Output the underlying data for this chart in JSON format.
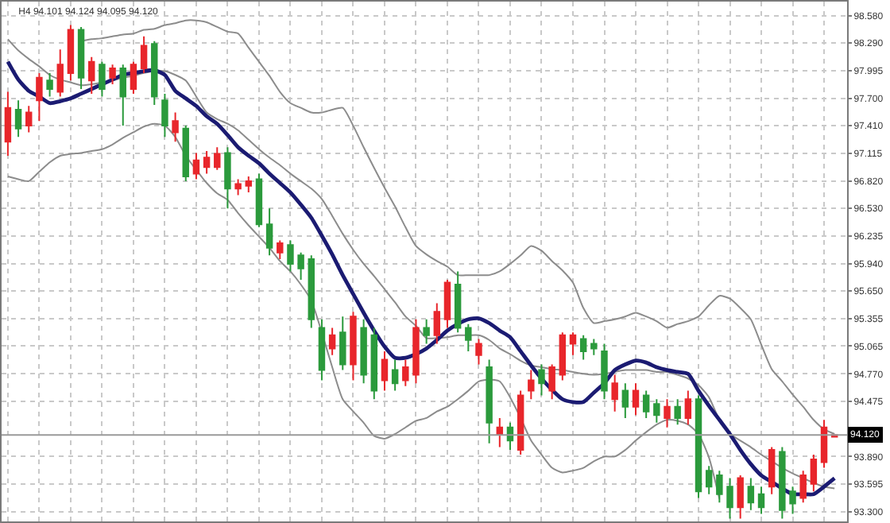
{
  "chart_data": {
    "type": "candlestick",
    "title": "H4 94.101 94.124 94.095 94.120",
    "categories": [
      null,
      null,
      null,
      null,
      null,
      null,
      null,
      null,
      null,
      null,
      null,
      null,
      null,
      null,
      null,
      null,
      null,
      null,
      null,
      null,
      null,
      null,
      null,
      null,
      null,
      null,
      null,
      null,
      null,
      null,
      null,
      null,
      null,
      null,
      null,
      null,
      null,
      null,
      null,
      null,
      null,
      null,
      null,
      null,
      null,
      null,
      null,
      null,
      null,
      null,
      null,
      null,
      null,
      null,
      null,
      null,
      null,
      null,
      null,
      null,
      null,
      null,
      null,
      null,
      null,
      null,
      null,
      null,
      null,
      null,
      null,
      null,
      null,
      null,
      null,
      null,
      null,
      null,
      null,
      null
    ],
    "ohlc": [
      [
        97.24,
        97.77,
        97.09,
        97.6
      ],
      [
        97.58,
        97.68,
        97.29,
        97.38
      ],
      [
        97.41,
        97.62,
        97.34,
        97.55
      ],
      [
        97.68,
        97.97,
        97.46,
        97.92
      ],
      [
        97.89,
        97.97,
        97.72,
        97.8
      ],
      [
        97.77,
        98.22,
        97.72,
        98.06
      ],
      [
        97.97,
        98.48,
        97.89,
        98.43
      ],
      [
        98.43,
        98.46,
        97.8,
        97.92
      ],
      [
        97.89,
        98.14,
        97.75,
        98.09
      ],
      [
        98.06,
        98.09,
        97.72,
        97.8
      ],
      [
        97.92,
        98.06,
        97.85,
        98.02
      ],
      [
        98.02,
        98.06,
        97.41,
        97.72
      ],
      [
        97.8,
        98.09,
        97.75,
        98.06
      ],
      [
        98.02,
        98.36,
        97.97,
        98.26
      ],
      [
        98.28,
        98.31,
        97.63,
        97.72
      ],
      [
        97.68,
        97.75,
        97.29,
        97.41
      ],
      [
        97.34,
        97.55,
        97.24,
        97.46
      ],
      [
        97.38,
        97.41,
        96.82,
        96.87
      ],
      [
        96.9,
        97.12,
        96.84,
        97.04
      ],
      [
        96.97,
        97.14,
        96.9,
        97.07
      ],
      [
        96.97,
        97.18,
        96.94,
        97.11
      ],
      [
        97.12,
        97.18,
        96.53,
        96.74
      ],
      [
        96.74,
        96.84,
        96.67,
        96.79
      ],
      [
        96.77,
        96.87,
        96.7,
        96.82
      ],
      [
        96.84,
        96.9,
        96.33,
        96.36
      ],
      [
        96.36,
        96.53,
        96.03,
        96.11
      ],
      [
        96.06,
        96.19,
        95.99,
        96.16
      ],
      [
        96.14,
        96.19,
        95.86,
        95.94
      ],
      [
        96.03,
        96.06,
        95.77,
        95.89
      ],
      [
        95.99,
        96.03,
        95.26,
        95.35
      ],
      [
        95.26,
        95.35,
        94.7,
        94.81
      ],
      [
        95.04,
        95.26,
        94.97,
        95.18
      ],
      [
        95.21,
        95.38,
        94.81,
        94.87
      ],
      [
        94.87,
        95.43,
        94.7,
        95.38
      ],
      [
        95.26,
        95.35,
        94.67,
        94.76
      ],
      [
        95.18,
        95.26,
        94.5,
        94.59
      ],
      [
        94.7,
        95.01,
        94.59,
        94.92
      ],
      [
        94.81,
        94.92,
        94.59,
        94.67
      ],
      [
        94.7,
        94.92,
        94.64,
        94.84
      ],
      [
        94.76,
        95.35,
        94.67,
        95.26
      ],
      [
        95.26,
        95.35,
        95.09,
        95.18
      ],
      [
        95.18,
        95.52,
        95.09,
        95.43
      ],
      [
        95.35,
        95.77,
        95.26,
        95.74
      ],
      [
        95.72,
        95.86,
        95.21,
        95.26
      ],
      [
        95.26,
        95.3,
        95.01,
        95.13
      ],
      [
        94.97,
        95.14,
        94.87,
        95.09
      ],
      [
        94.84,
        94.92,
        94.03,
        94.25
      ],
      [
        94.13,
        94.3,
        93.99,
        94.2
      ],
      [
        94.2,
        94.25,
        93.96,
        94.06
      ],
      [
        93.96,
        94.59,
        93.91,
        94.54
      ],
      [
        94.59,
        94.81,
        94.5,
        94.7
      ],
      [
        94.81,
        94.87,
        94.54,
        94.67
      ],
      [
        94.59,
        94.87,
        94.5,
        94.84
      ],
      [
        94.76,
        95.21,
        94.7,
        95.18
      ],
      [
        95.09,
        95.21,
        94.97,
        95.18
      ],
      [
        95.14,
        95.18,
        94.92,
        95.01
      ],
      [
        95.09,
        95.14,
        94.97,
        95.04
      ],
      [
        95.01,
        95.09,
        94.5,
        94.59
      ],
      [
        94.5,
        94.76,
        94.37,
        94.67
      ],
      [
        94.59,
        94.67,
        94.3,
        94.42
      ],
      [
        94.42,
        94.67,
        94.33,
        94.59
      ],
      [
        94.54,
        94.59,
        94.3,
        94.37
      ],
      [
        94.45,
        94.5,
        94.25,
        94.33
      ],
      [
        94.3,
        94.5,
        94.2,
        94.42
      ],
      [
        94.42,
        94.5,
        94.23,
        94.3
      ],
      [
        94.3,
        94.59,
        94.23,
        94.5
      ],
      [
        94.5,
        94.54,
        93.45,
        93.52
      ],
      [
        93.74,
        93.79,
        93.49,
        93.57
      ],
      [
        93.69,
        93.74,
        93.4,
        93.49
      ],
      [
        93.57,
        93.66,
        93.23,
        93.35
      ],
      [
        93.35,
        93.69,
        93.23,
        93.66
      ],
      [
        93.57,
        93.66,
        93.32,
        93.4
      ],
      [
        93.49,
        93.57,
        93.28,
        93.35
      ],
      [
        93.57,
        93.99,
        93.49,
        93.96
      ],
      [
        93.94,
        93.99,
        93.23,
        93.32
      ],
      [
        93.52,
        93.57,
        93.28,
        93.39
      ],
      [
        93.45,
        93.74,
        93.4,
        93.69
      ],
      [
        93.6,
        93.91,
        93.52,
        93.86
      ],
      [
        93.83,
        94.28,
        93.77,
        94.2
      ],
      [
        94.101,
        94.124,
        94.095,
        94.12
      ]
    ],
    "colors": [
      "#e8262b",
      "#2b9a3c",
      "#e8262b",
      "#e8262b",
      "#2b9a3c",
      "#e8262b",
      "#e8262b",
      "#2b9a3c",
      "#e8262b",
      "#2b9a3c",
      "#e8262b",
      "#2b9a3c",
      "#e8262b",
      "#e8262b",
      "#2b9a3c",
      "#2b9a3c",
      "#e8262b",
      "#2b9a3c",
      "#e8262b",
      "#e8262b",
      "#e8262b",
      "#2b9a3c",
      "#e8262b",
      "#e8262b",
      "#2b9a3c",
      "#2b9a3c",
      "#e8262b",
      "#2b9a3c",
      "#2b9a3c",
      "#2b9a3c",
      "#2b9a3c",
      "#e8262b",
      "#2b9a3c",
      "#e8262b",
      "#2b9a3c",
      "#2b9a3c",
      "#e8262b",
      "#2b9a3c",
      "#e8262b",
      "#e8262b",
      "#2b9a3c",
      "#e8262b",
      "#e8262b",
      "#2b9a3c",
      "#2b9a3c",
      "#e8262b",
      "#2b9a3c",
      "#e8262b",
      "#2b9a3c",
      "#e8262b",
      "#e8262b",
      "#2b9a3c",
      "#e8262b",
      "#e8262b",
      "#e8262b",
      "#2b9a3c",
      "#2b9a3c",
      "#2b9a3c",
      "#e8262b",
      "#2b9a3c",
      "#e8262b",
      "#2b9a3c",
      "#2b9a3c",
      "#e8262b",
      "#2b9a3c",
      "#e8262b",
      "#2b9a3c",
      "#2b9a3c",
      "#2b9a3c",
      "#2b9a3c",
      "#e8262b",
      "#2b9a3c",
      "#2b9a3c",
      "#e8262b",
      "#2b9a3c",
      "#2b9a3c",
      "#e8262b",
      "#e8262b",
      "#e8262b",
      "#e8262b"
    ],
    "series": [
      {
        "type": "line",
        "color": "#8c8c8c",
        "values": [
          null,
          null,
          null,
          null,
          null,
          null,
          null,
          98.31,
          98.33,
          98.34,
          98.36,
          98.38,
          98.39,
          98.43,
          98.44,
          98.48,
          98.5,
          98.53,
          98.53,
          98.51,
          98.46,
          98.41,
          98.39,
          98.24,
          98.09,
          97.94,
          97.77,
          97.65,
          97.6,
          97.55,
          97.55,
          97.58,
          97.6,
          97.41,
          97.18,
          96.96,
          96.75,
          96.55,
          96.33,
          96.13,
          96.04,
          95.97,
          95.91,
          95.82,
          95.82,
          95.82,
          95.82,
          95.86,
          95.94,
          96.03,
          96.13,
          96.08,
          95.97,
          95.87,
          95.74,
          95.47,
          95.31,
          95.33,
          95.35,
          95.38,
          95.42,
          95.38,
          95.33,
          95.26,
          95.3,
          95.33,
          95.38,
          95.5,
          95.6,
          95.57,
          95.47,
          95.35,
          95.08,
          94.82,
          94.69,
          94.55,
          94.42,
          94.28,
          94.18,
          94.13
        ]
      },
      {
        "type": "line",
        "color": "#8c8c8c",
        "values": [
          98.33,
          98.21,
          98.12,
          98.04,
          97.95,
          97.9,
          97.87,
          97.84,
          97.85,
          97.87,
          97.89,
          97.92,
          97.94,
          97.97,
          97.99,
          97.99,
          97.95,
          97.89,
          97.72,
          97.55,
          97.48,
          97.43,
          97.36,
          97.26,
          97.16,
          97.07,
          96.99,
          96.9,
          96.82,
          96.74,
          96.63,
          96.45,
          96.26,
          96.09,
          95.94,
          95.81,
          95.67,
          95.53,
          95.38,
          95.28,
          95.15,
          95.15,
          95.16,
          95.18,
          95.18,
          95.18,
          95.13,
          95.04,
          94.98,
          94.91,
          94.86,
          94.84,
          94.82,
          94.81,
          94.79,
          94.77,
          94.76,
          94.77,
          94.79,
          94.81,
          94.81,
          94.81,
          94.79,
          94.79,
          94.76,
          94.72,
          94.65,
          94.52,
          94.28,
          94.13,
          94.06,
          93.99,
          93.91,
          93.84,
          93.77,
          93.71,
          93.66,
          93.61,
          93.57,
          93.55
        ]
      },
      {
        "type": "line",
        "color": "#8c8c8c",
        "values": [
          96.87,
          96.84,
          96.82,
          96.92,
          97.02,
          97.09,
          97.11,
          97.12,
          97.14,
          97.16,
          97.21,
          97.28,
          97.34,
          97.4,
          97.43,
          97.41,
          97.29,
          97.09,
          96.94,
          96.8,
          96.69,
          96.62,
          96.48,
          96.35,
          96.23,
          96.11,
          95.97,
          95.86,
          95.72,
          95.55,
          95.21,
          94.84,
          94.5,
          94.37,
          94.25,
          94.11,
          94.08,
          94.13,
          94.2,
          94.27,
          94.3,
          94.37,
          94.42,
          94.5,
          94.59,
          94.69,
          94.71,
          94.69,
          94.52,
          94.3,
          94.06,
          93.91,
          93.77,
          93.72,
          93.74,
          93.77,
          93.84,
          93.89,
          93.89,
          93.96,
          94.06,
          94.15,
          94.23,
          94.28,
          94.27,
          94.23,
          94.13,
          93.88,
          93.44,
          null,
          null,
          null,
          null,
          null,
          null,
          null,
          null,
          null,
          null,
          null
        ]
      },
      {
        "type": "line",
        "color": "#1b1b72",
        "values": [
          98.09,
          97.9,
          97.78,
          97.72,
          97.65,
          97.67,
          97.7,
          97.75,
          97.8,
          97.85,
          97.9,
          97.95,
          97.97,
          97.99,
          98.0,
          97.95,
          97.78,
          97.7,
          97.62,
          97.51,
          97.43,
          97.31,
          97.18,
          97.09,
          97.01,
          96.9,
          96.8,
          96.7,
          96.57,
          96.43,
          96.24,
          96.04,
          95.82,
          95.62,
          95.42,
          95.23,
          95.06,
          94.94,
          94.94,
          94.98,
          95.04,
          95.13,
          95.23,
          95.3,
          95.35,
          95.36,
          95.31,
          95.23,
          95.16,
          95.01,
          94.86,
          94.72,
          94.6,
          94.5,
          94.47,
          94.47,
          94.57,
          94.67,
          94.81,
          94.87,
          94.91,
          94.89,
          94.84,
          94.81,
          94.79,
          94.77,
          94.59,
          94.43,
          94.28,
          94.13,
          93.96,
          93.81,
          93.69,
          93.62,
          93.55,
          93.49,
          93.49,
          93.49,
          93.57,
          93.66
        ]
      }
    ],
    "ylim": [
      93.2,
      98.73
    ],
    "yticks": [
      {
        "value": 98.58,
        "label": "98.580"
      },
      {
        "value": 98.29,
        "label": "98.290"
      },
      {
        "value": 97.995,
        "label": "97.995"
      },
      {
        "value": 97.7,
        "label": "97.700"
      },
      {
        "value": 97.41,
        "label": "97.410"
      },
      {
        "value": 97.115,
        "label": "97.115"
      },
      {
        "value": 96.82,
        "label": "96.820"
      },
      {
        "value": 96.53,
        "label": "96.530"
      },
      {
        "value": 96.235,
        "label": "96.235"
      },
      {
        "value": 95.94,
        "label": "95.940"
      },
      {
        "value": 95.65,
        "label": "95.650"
      },
      {
        "value": 95.355,
        "label": "95.355"
      },
      {
        "value": 95.065,
        "label": "95.065"
      },
      {
        "value": 94.77,
        "label": "94.770"
      },
      {
        "value": 94.475,
        "label": "94.475"
      },
      {
        "value": 93.89,
        "label": "93.890"
      },
      {
        "value": 93.595,
        "label": "93.595"
      },
      {
        "value": 93.3,
        "label": "93.300"
      }
    ],
    "ref_lines": [
      {
        "axis": "y",
        "value": 94.12,
        "label": "94.120",
        "color": "#9a9a9a"
      }
    ],
    "grid": true,
    "tick_labels": "y"
  }
}
